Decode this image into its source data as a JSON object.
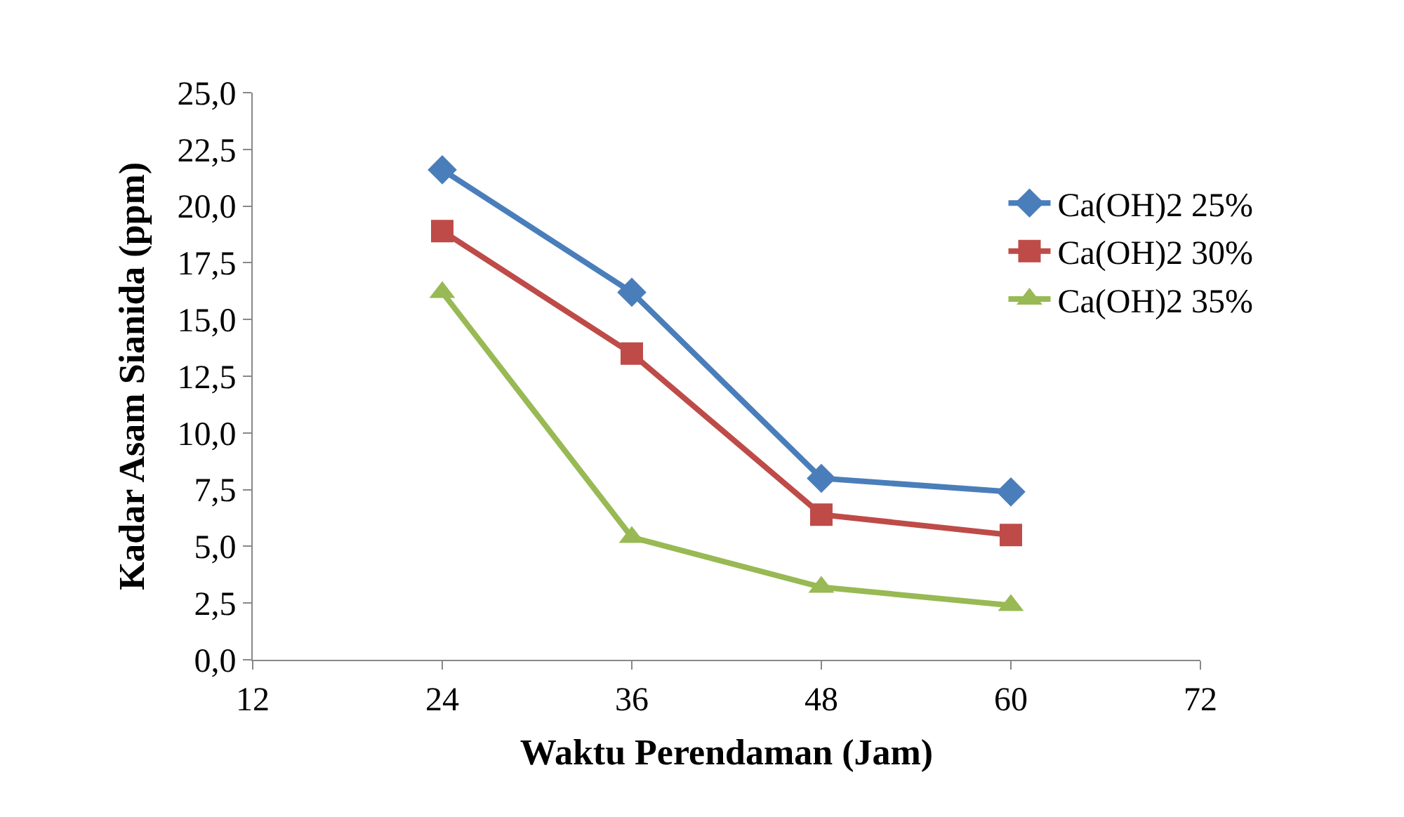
{
  "chart_data": {
    "type": "line",
    "xlabel": "Waktu Perendaman (Jam)",
    "ylabel": "Kadar Asam Sianida (ppm)",
    "x": [
      24,
      36,
      48,
      60
    ],
    "series": [
      {
        "name": "Ca(OH)2 25%",
        "color": "#4a7ebb",
        "marker": "diamond",
        "values": [
          21.6,
          16.2,
          8.0,
          7.4
        ]
      },
      {
        "name": "Ca(OH)2 30%",
        "color": "#be4b48",
        "marker": "square",
        "values": [
          18.9,
          13.5,
          6.4,
          5.5
        ]
      },
      {
        "name": "Ca(OH)2 35%",
        "color": "#98b954",
        "marker": "triangle",
        "values": [
          16.2,
          5.4,
          3.2,
          2.4
        ]
      }
    ],
    "xlim": [
      12,
      72
    ],
    "xticks": [
      12,
      24,
      36,
      48,
      60,
      72
    ],
    "ylim": [
      0,
      25
    ],
    "yticks": [
      {
        "value": 0,
        "label": "0,0"
      },
      {
        "value": 2.5,
        "label": "2,5"
      },
      {
        "value": 5,
        "label": "5,0"
      },
      {
        "value": 7.5,
        "label": "7,5"
      },
      {
        "value": 10,
        "label": "10,0"
      },
      {
        "value": 12.5,
        "label": "12,5"
      },
      {
        "value": 15,
        "label": "15,0"
      },
      {
        "value": 17.5,
        "label": "17,5"
      },
      {
        "value": 20,
        "label": "20,0"
      },
      {
        "value": 22.5,
        "label": "22,5"
      },
      {
        "value": 25,
        "label": "25,0"
      }
    ],
    "legend": "right",
    "line_style": "solid"
  }
}
